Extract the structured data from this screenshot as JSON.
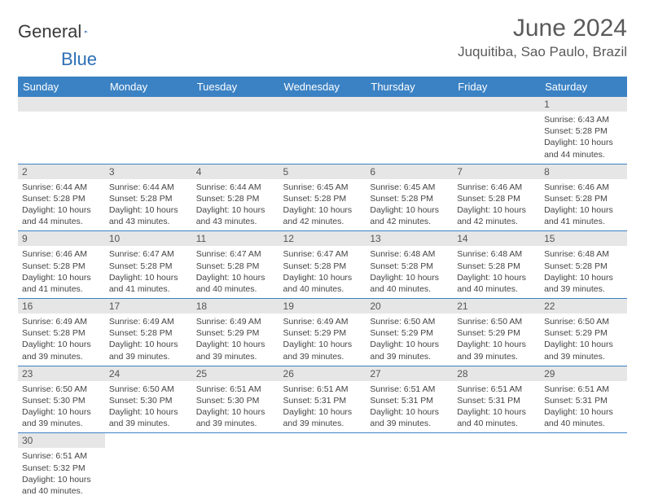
{
  "brand": {
    "name1": "General",
    "name2": "Blue"
  },
  "title": "June 2024",
  "location": "Juquitiba, Sao Paulo, Brazil",
  "colors": {
    "header_bg": "#3b82c4",
    "header_fg": "#ffffff",
    "daynum_bg": "#e6e6e6",
    "text": "#444444",
    "title": "#5a5a5a",
    "border": "#3b82c4"
  },
  "day_headers": [
    "Sunday",
    "Monday",
    "Tuesday",
    "Wednesday",
    "Thursday",
    "Friday",
    "Saturday"
  ],
  "weeks": [
    [
      null,
      null,
      null,
      null,
      null,
      null,
      {
        "n": "1",
        "sunrise": "6:43 AM",
        "sunset": "5:28 PM",
        "daylight": "10 hours and 44 minutes."
      }
    ],
    [
      {
        "n": "2",
        "sunrise": "6:44 AM",
        "sunset": "5:28 PM",
        "daylight": "10 hours and 44 minutes."
      },
      {
        "n": "3",
        "sunrise": "6:44 AM",
        "sunset": "5:28 PM",
        "daylight": "10 hours and 43 minutes."
      },
      {
        "n": "4",
        "sunrise": "6:44 AM",
        "sunset": "5:28 PM",
        "daylight": "10 hours and 43 minutes."
      },
      {
        "n": "5",
        "sunrise": "6:45 AM",
        "sunset": "5:28 PM",
        "daylight": "10 hours and 42 minutes."
      },
      {
        "n": "6",
        "sunrise": "6:45 AM",
        "sunset": "5:28 PM",
        "daylight": "10 hours and 42 minutes."
      },
      {
        "n": "7",
        "sunrise": "6:46 AM",
        "sunset": "5:28 PM",
        "daylight": "10 hours and 42 minutes."
      },
      {
        "n": "8",
        "sunrise": "6:46 AM",
        "sunset": "5:28 PM",
        "daylight": "10 hours and 41 minutes."
      }
    ],
    [
      {
        "n": "9",
        "sunrise": "6:46 AM",
        "sunset": "5:28 PM",
        "daylight": "10 hours and 41 minutes."
      },
      {
        "n": "10",
        "sunrise": "6:47 AM",
        "sunset": "5:28 PM",
        "daylight": "10 hours and 41 minutes."
      },
      {
        "n": "11",
        "sunrise": "6:47 AM",
        "sunset": "5:28 PM",
        "daylight": "10 hours and 40 minutes."
      },
      {
        "n": "12",
        "sunrise": "6:47 AM",
        "sunset": "5:28 PM",
        "daylight": "10 hours and 40 minutes."
      },
      {
        "n": "13",
        "sunrise": "6:48 AM",
        "sunset": "5:28 PM",
        "daylight": "10 hours and 40 minutes."
      },
      {
        "n": "14",
        "sunrise": "6:48 AM",
        "sunset": "5:28 PM",
        "daylight": "10 hours and 40 minutes."
      },
      {
        "n": "15",
        "sunrise": "6:48 AM",
        "sunset": "5:28 PM",
        "daylight": "10 hours and 39 minutes."
      }
    ],
    [
      {
        "n": "16",
        "sunrise": "6:49 AM",
        "sunset": "5:28 PM",
        "daylight": "10 hours and 39 minutes."
      },
      {
        "n": "17",
        "sunrise": "6:49 AM",
        "sunset": "5:28 PM",
        "daylight": "10 hours and 39 minutes."
      },
      {
        "n": "18",
        "sunrise": "6:49 AM",
        "sunset": "5:29 PM",
        "daylight": "10 hours and 39 minutes."
      },
      {
        "n": "19",
        "sunrise": "6:49 AM",
        "sunset": "5:29 PM",
        "daylight": "10 hours and 39 minutes."
      },
      {
        "n": "20",
        "sunrise": "6:50 AM",
        "sunset": "5:29 PM",
        "daylight": "10 hours and 39 minutes."
      },
      {
        "n": "21",
        "sunrise": "6:50 AM",
        "sunset": "5:29 PM",
        "daylight": "10 hours and 39 minutes."
      },
      {
        "n": "22",
        "sunrise": "6:50 AM",
        "sunset": "5:29 PM",
        "daylight": "10 hours and 39 minutes."
      }
    ],
    [
      {
        "n": "23",
        "sunrise": "6:50 AM",
        "sunset": "5:30 PM",
        "daylight": "10 hours and 39 minutes."
      },
      {
        "n": "24",
        "sunrise": "6:50 AM",
        "sunset": "5:30 PM",
        "daylight": "10 hours and 39 minutes."
      },
      {
        "n": "25",
        "sunrise": "6:51 AM",
        "sunset": "5:30 PM",
        "daylight": "10 hours and 39 minutes."
      },
      {
        "n": "26",
        "sunrise": "6:51 AM",
        "sunset": "5:31 PM",
        "daylight": "10 hours and 39 minutes."
      },
      {
        "n": "27",
        "sunrise": "6:51 AM",
        "sunset": "5:31 PM",
        "daylight": "10 hours and 39 minutes."
      },
      {
        "n": "28",
        "sunrise": "6:51 AM",
        "sunset": "5:31 PM",
        "daylight": "10 hours and 40 minutes."
      },
      {
        "n": "29",
        "sunrise": "6:51 AM",
        "sunset": "5:31 PM",
        "daylight": "10 hours and 40 minutes."
      }
    ],
    [
      {
        "n": "30",
        "sunrise": "6:51 AM",
        "sunset": "5:32 PM",
        "daylight": "10 hours and 40 minutes."
      },
      null,
      null,
      null,
      null,
      null,
      null
    ]
  ],
  "labels": {
    "sunrise": "Sunrise: ",
    "sunset": "Sunset: ",
    "daylight": "Daylight: "
  }
}
